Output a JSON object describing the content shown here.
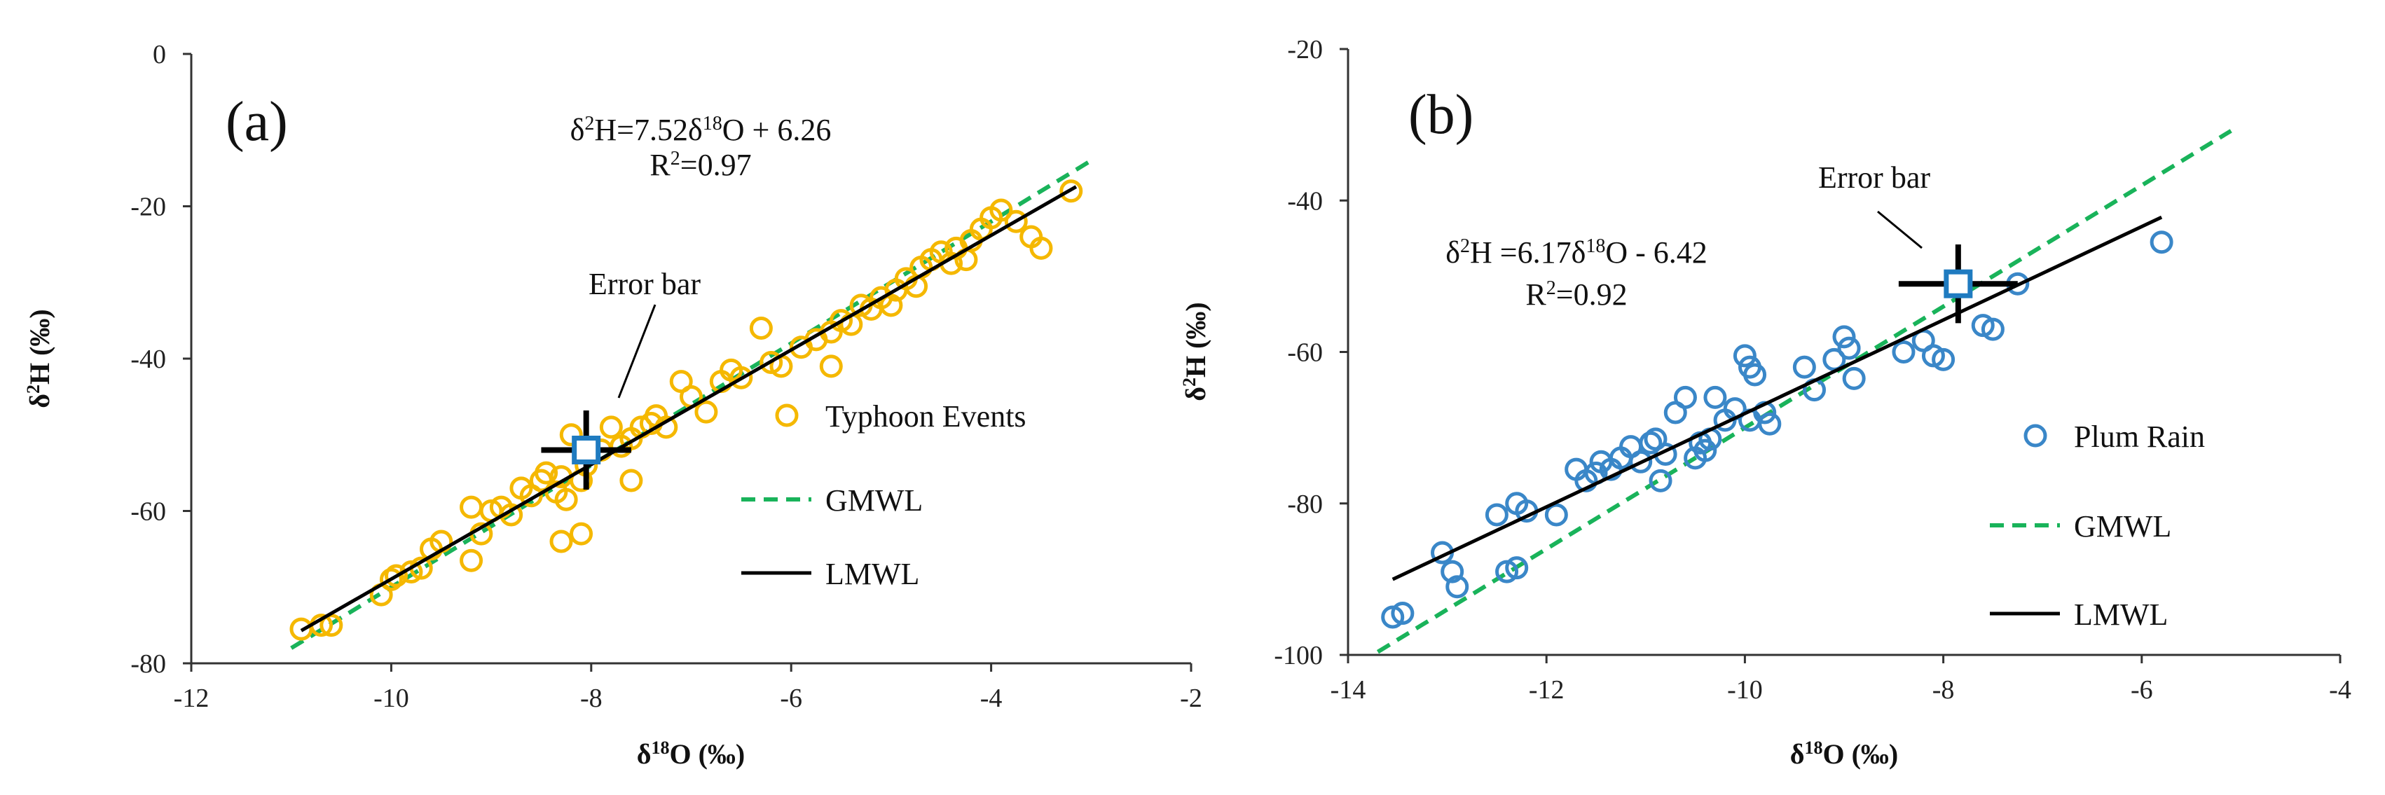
{
  "chart_data": [
    {
      "type": "scatter",
      "panel_label": "(a)",
      "xlabel": "δ18O (‰)",
      "ylabel": "δ2H (‰)",
      "xlim": [
        -12,
        -2
      ],
      "ylim": [
        -80,
        0
      ],
      "xticks": [
        -12,
        -10,
        -8,
        -6,
        -4,
        -2
      ],
      "yticks": [
        0,
        -20,
        -40,
        -60,
        -80
      ],
      "colors": {
        "points": "#f5b800",
        "gmwl": "#19b35a",
        "lmwl": "#000000",
        "errorbar_marker": "#1f7bc0"
      },
      "equation": {
        "lhs_base": "δ",
        "lhs_sup": "2",
        "lhs_rest": "H=7.52δ",
        "rhs_sup": "18",
        "rhs_rest": "O  + 6.26"
      },
      "r2": {
        "base": "R",
        "sup": "2",
        "rest": "=0.97"
      },
      "error_bar": {
        "label": "Error bar",
        "x": -8.05,
        "y": -52.0,
        "x_half": 0.45,
        "y_half": 5.2
      },
      "gmwl": {
        "slope": 8,
        "intercept": 10,
        "x_range": [
          -11.0,
          -3.0
        ]
      },
      "lmwl": {
        "slope": 7.52,
        "intercept": 6.26,
        "x_range": [
          -10.9,
          -3.15
        ]
      },
      "legend": [
        {
          "label": "Typhoon Events",
          "kind": "marker"
        },
        {
          "label": "GMWL",
          "kind": "dashed"
        },
        {
          "label": "LMWL",
          "kind": "solid"
        }
      ],
      "series": [
        {
          "name": "Typhoon Events",
          "x": [
            -10.9,
            -10.7,
            -10.6,
            -10.1,
            -10.0,
            -9.95,
            -9.8,
            -9.7,
            -9.6,
            -9.5,
            -9.2,
            -9.1,
            -9.0,
            -8.9,
            -8.8,
            -8.7,
            -8.6,
            -8.5,
            -8.45,
            -8.35,
            -8.3,
            -8.2,
            -8.25,
            -8.1,
            -8.05,
            -7.9,
            -7.8,
            -7.7,
            -7.6,
            -7.5,
            -7.4,
            -7.35,
            -7.25,
            -7.1,
            -7.0,
            -6.85,
            -6.7,
            -6.6,
            -6.5,
            -6.2,
            -6.1,
            -5.9,
            -5.75,
            -5.6,
            -5.5,
            -5.4,
            -5.3,
            -5.2,
            -5.1,
            -5.0,
            -4.95,
            -4.85,
            -4.75,
            -4.7,
            -4.6,
            -4.5,
            -4.4,
            -4.35,
            -4.25,
            -4.2,
            -4.1,
            -4.0,
            -3.9,
            -3.75,
            -3.6,
            -3.5,
            -3.2,
            -7.6,
            -8.1,
            -8.3,
            -9.2,
            -6.3,
            -5.6
          ],
          "y": [
            -75.5,
            -75.0,
            -75.0,
            -71.0,
            -69.0,
            -68.5,
            -68.0,
            -67.5,
            -65.0,
            -64.0,
            -66.5,
            -63.0,
            -60.0,
            -59.5,
            -60.5,
            -57.0,
            -58.0,
            -56.0,
            -55.0,
            -57.5,
            -55.5,
            -50.0,
            -58.5,
            -56.0,
            -54.0,
            -52.0,
            -49.0,
            -51.5,
            -50.5,
            -49.0,
            -48.5,
            -47.5,
            -49.0,
            -43.0,
            -45.0,
            -47.0,
            -43.0,
            -41.5,
            -42.5,
            -40.5,
            -41.0,
            -38.5,
            -37.5,
            -36.5,
            -35.0,
            -35.5,
            -33.0,
            -33.5,
            -32.0,
            -33.0,
            -31.0,
            -29.5,
            -30.5,
            -28.0,
            -27.0,
            -26.0,
            -27.5,
            -25.5,
            -27.0,
            -24.5,
            -23.0,
            -21.5,
            -20.5,
            -22.0,
            -24.0,
            -25.5,
            -18.0,
            -56.0,
            -63.0,
            -64.0,
            -59.5,
            -36.0,
            -41.0
          ]
        }
      ]
    },
    {
      "type": "scatter",
      "panel_label": "(b)",
      "xlabel": "δ18O (‰)",
      "ylabel": "δ2H (‰)",
      "xlim": [
        -14,
        -4
      ],
      "ylim": [
        -100,
        -20
      ],
      "xticks": [
        -14,
        -12,
        -10,
        -8,
        -6,
        -4
      ],
      "yticks": [
        -20,
        -40,
        -60,
        -80,
        -100
      ],
      "colors": {
        "points": "#3a87c8",
        "gmwl": "#19b35a",
        "lmwl": "#000000",
        "errorbar_marker": "#1f7bc0"
      },
      "equation": {
        "lhs_base": "δ",
        "lhs_sup": "2",
        "lhs_rest": "H =6.17δ",
        "rhs_sup": "18",
        "rhs_rest": "O - 6.42"
      },
      "r2": {
        "base": "R",
        "sup": "2",
        "rest": "=0.92"
      },
      "error_bar": {
        "label": "Error bar",
        "x": -7.85,
        "y": -51.0,
        "x_half": 0.6,
        "y_half": 5.2
      },
      "gmwl": {
        "slope": 8,
        "intercept": 10,
        "x_range": [
          -13.7,
          -5.1
        ]
      },
      "lmwl": {
        "slope": 6.17,
        "intercept": -6.42,
        "x_range": [
          -13.55,
          -5.8
        ]
      },
      "legend": [
        {
          "label": "Plum Rain",
          "kind": "marker"
        },
        {
          "label": "GMWL",
          "kind": "dashed"
        },
        {
          "label": "LMWL",
          "kind": "solid"
        }
      ],
      "series": [
        {
          "name": "Plum Rain",
          "x": [
            -13.55,
            -13.45,
            -13.05,
            -12.95,
            -12.9,
            -12.4,
            -12.3,
            -12.5,
            -12.3,
            -12.2,
            -11.9,
            -11.7,
            -11.6,
            -11.5,
            -11.45,
            -11.35,
            -11.25,
            -11.15,
            -11.05,
            -10.95,
            -10.9,
            -10.8,
            -10.7,
            -10.6,
            -10.5,
            -10.45,
            -10.4,
            -10.35,
            -10.3,
            -10.2,
            -10.1,
            -10.0,
            -9.95,
            -9.9,
            -9.8,
            -9.75,
            -9.4,
            -9.3,
            -9.1,
            -9.0,
            -8.95,
            -8.9,
            -8.4,
            -8.2,
            -8.1,
            -8.0,
            -7.6,
            -7.5,
            -7.25,
            -5.8,
            -9.95,
            -10.85
          ],
          "y": [
            -95.0,
            -94.5,
            -86.5,
            -89.0,
            -91.0,
            -89.0,
            -88.5,
            -81.5,
            -80.0,
            -81.0,
            -81.5,
            -75.5,
            -77.0,
            -76.0,
            -74.5,
            -75.5,
            -74.0,
            -72.5,
            -74.5,
            -72.0,
            -71.5,
            -73.5,
            -68.0,
            -66.0,
            -74.0,
            -72.0,
            -73.0,
            -71.5,
            -66.0,
            -69.0,
            -67.5,
            -60.5,
            -62.0,
            -63.0,
            -68.0,
            -69.5,
            -62.0,
            -65.0,
            -61.0,
            -58.0,
            -59.5,
            -63.5,
            -60.0,
            -58.5,
            -60.5,
            -61.0,
            -56.5,
            -57.0,
            -51.0,
            -45.5,
            -69.0,
            -77.0
          ]
        }
      ]
    }
  ]
}
